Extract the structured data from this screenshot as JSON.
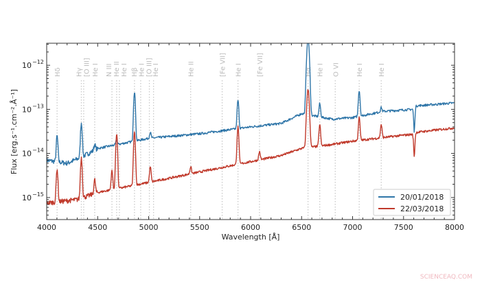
{
  "chart_data": {
    "type": "line",
    "xlabel": "Wavelength [Å]",
    "ylabel": "Flux [erg.s⁻¹.cm⁻².Å⁻¹]",
    "xlim": [
      4000,
      8000
    ],
    "ylim_log10": [
      -15.5,
      -11.5
    ],
    "yscale": "log",
    "xticks": [
      4000,
      4500,
      5000,
      5500,
      6000,
      6500,
      7000,
      7500,
      8000
    ],
    "yticks_exp": [
      -15,
      -14,
      -13,
      -12
    ],
    "ytick_labels": [
      "10",
      "10",
      "10",
      "10"
    ],
    "ytick_sup": [
      "−15",
      "−14",
      "−13",
      "−12"
    ],
    "legend_position": "lower-right",
    "line_markers": [
      {
        "label": "Hδ",
        "wavelength": 4102
      },
      {
        "label": "Hγ",
        "wavelength": 4340
      },
      {
        "label": "[O III]",
        "wavelength": 4363
      },
      {
        "label": "He I",
        "wavelength": 4471
      },
      {
        "label": "N III",
        "wavelength": 4640
      },
      {
        "label": "He II",
        "wavelength": 4686
      },
      {
        "label": "He I",
        "wavelength": 4713
      },
      {
        "label": "Hβ",
        "wavelength": 4861
      },
      {
        "label": "He I",
        "wavelength": 4922
      },
      {
        "label": "[O III]",
        "wavelength": 5007
      },
      {
        "label": "He I",
        "wavelength": 5048
      },
      {
        "label": "He II",
        "wavelength": 5412
      },
      {
        "label": "[Fe VII]",
        "wavelength": 5721
      },
      {
        "label": "He I",
        "wavelength": 5876
      },
      {
        "label": "[Fe VII]",
        "wavelength": 6087
      },
      {
        "label": "Hα",
        "wavelength": 6563
      },
      {
        "label": "He I",
        "wavelength": 6678
      },
      {
        "label": "O VI",
        "wavelength": 6830
      },
      {
        "label": "He I",
        "wavelength": 7065
      },
      {
        "label": "He I",
        "wavelength": 7281
      }
    ],
    "series": [
      {
        "name": "20/01/2018",
        "color": "#2e75a8",
        "continuum": [
          [
            4000,
            7e-15
          ],
          [
            4200,
            6e-15
          ],
          [
            4330,
            8e-15
          ],
          [
            4500,
            1.3e-14
          ],
          [
            5000,
            2.2e-14
          ],
          [
            5500,
            2.8e-14
          ],
          [
            6000,
            4e-14
          ],
          [
            6300,
            4.8e-14
          ],
          [
            6500,
            8e-14
          ],
          [
            6800,
            6e-14
          ],
          [
            7000,
            6.5e-14
          ],
          [
            7300,
            9e-14
          ],
          [
            7580,
            1e-13
          ],
          [
            7620,
            1.2e-13
          ],
          [
            8000,
            1.4e-13
          ]
        ],
        "lines": [
          [
            4102,
            2.5e-14
          ],
          [
            4340,
            5e-14
          ],
          [
            4471,
            1.6e-14
          ],
          [
            4686,
            2e-14
          ],
          [
            4861,
            2.5e-13
          ],
          [
            5016,
            3e-14
          ],
          [
            5876,
            1.6e-13
          ],
          [
            6563,
            4e-12
          ],
          [
            6678,
            1.35e-13
          ],
          [
            7065,
            2.7e-13
          ],
          [
            7281,
            1.1e-13
          ]
        ],
        "absorption": [
          [
            7605,
            3e-14
          ]
        ]
      },
      {
        "name": "22/03/2018",
        "color": "#c0392b",
        "continuum": [
          [
            4000,
            7.5e-16
          ],
          [
            4300,
            9e-16
          ],
          [
            4500,
            1.3e-15
          ],
          [
            5000,
            2.2e-15
          ],
          [
            5500,
            3.8e-15
          ],
          [
            6000,
            6.5e-15
          ],
          [
            6300,
            9e-15
          ],
          [
            6500,
            1.3e-14
          ],
          [
            6800,
            1.6e-14
          ],
          [
            7000,
            1.9e-14
          ],
          [
            7500,
            2.6e-14
          ],
          [
            7580,
            2.7e-14
          ],
          [
            7620,
            3e-14
          ],
          [
            8000,
            3.8e-14
          ]
        ],
        "lines": [
          [
            4102,
            4.5e-15
          ],
          [
            4340,
            8e-15
          ],
          [
            4471,
            2.5e-15
          ],
          [
            4640,
            4e-15
          ],
          [
            4686,
            2.8e-14
          ],
          [
            4861,
            3e-14
          ],
          [
            5016,
            5e-15
          ],
          [
            5412,
            5e-15
          ],
          [
            5876,
            4e-14
          ],
          [
            6087,
            1.1e-14
          ],
          [
            6563,
            2.8e-13
          ],
          [
            6678,
            4.5e-14
          ],
          [
            7065,
            6.5e-14
          ],
          [
            7281,
            4.5e-14
          ]
        ],
        "absorption": [
          [
            7605,
            8e-15
          ]
        ]
      }
    ]
  },
  "watermark": "SCIENCEAQ.COM"
}
